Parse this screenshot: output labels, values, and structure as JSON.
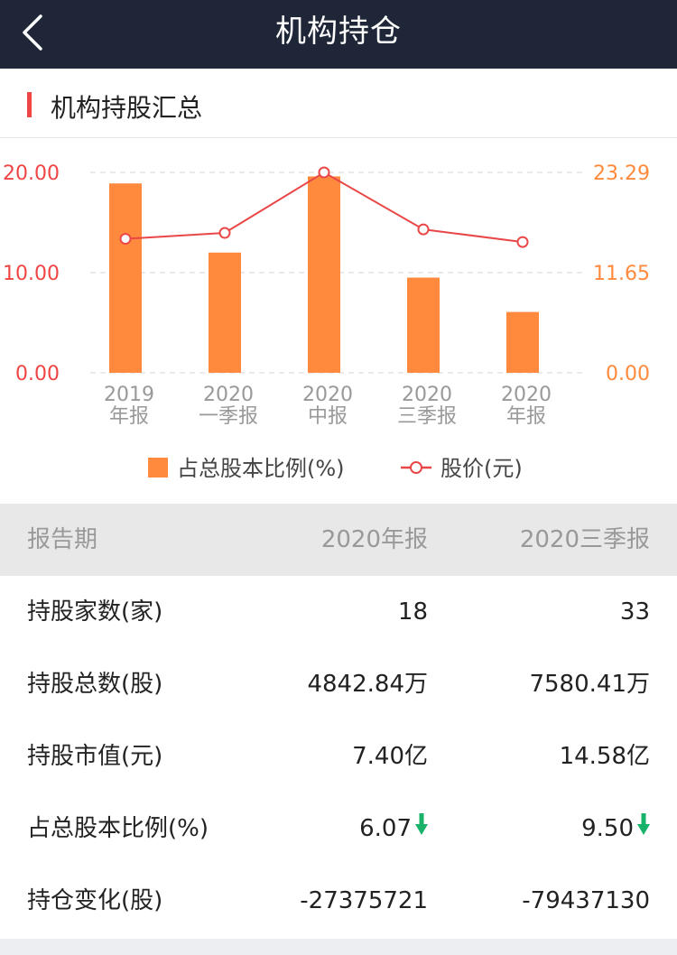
{
  "nav": {
    "title": "机构持仓"
  },
  "section": {
    "title": "机构持股汇总"
  },
  "chart_data": {
    "type": "bar",
    "categories": [
      [
        "2019",
        "年报"
      ],
      [
        "2020",
        "一季报"
      ],
      [
        "2020",
        "中报"
      ],
      [
        "2020",
        "三季报"
      ],
      [
        "2020",
        "年报"
      ]
    ],
    "series": [
      {
        "name": "占总股本比例(%)",
        "type": "bar",
        "color": "#ff8a3d",
        "values": [
          18.9,
          12.0,
          19.6,
          9.5,
          6.07
        ]
      },
      {
        "name": "股价(元)",
        "type": "line",
        "color": "#e94747",
        "values": [
          15.57,
          16.26,
          23.29,
          16.67,
          15.2
        ]
      }
    ],
    "y_left": {
      "ticks": [
        "0.00",
        "10.00",
        "20.00"
      ],
      "range": [
        0,
        20
      ],
      "color": "#f04545"
    },
    "y_right": {
      "ticks": [
        "0.00",
        "11.65",
        "23.29"
      ],
      "range": [
        0,
        23.29
      ],
      "color": "#ff8a3d"
    },
    "grid": true,
    "legend_position": "bottom"
  },
  "table": {
    "header": {
      "label": "报告期",
      "col1": "2020年报",
      "col2": "2020三季报"
    },
    "rows": [
      {
        "label": "持股家数(家)",
        "col1": "18",
        "col2": "33"
      },
      {
        "label": "持股总数(股)",
        "col1": "4842.84万",
        "col2": "7580.41万"
      },
      {
        "label": "持股市值(元)",
        "col1": "7.40亿",
        "col2": "14.58亿"
      },
      {
        "label": "占总股本比例(%)",
        "col1": "6.07",
        "col2": "9.50"
      },
      {
        "label": "持仓变化(股)",
        "col1": "-27375721",
        "col2": "-79437130"
      }
    ]
  },
  "icons": {
    "back": "chevron-left-icon",
    "down": "down-arrow-icon"
  },
  "colors": {
    "navbar": "#1e2637",
    "accent_red": "#f04545",
    "bar": "#ff8a3d",
    "down_green": "#18b26b"
  }
}
